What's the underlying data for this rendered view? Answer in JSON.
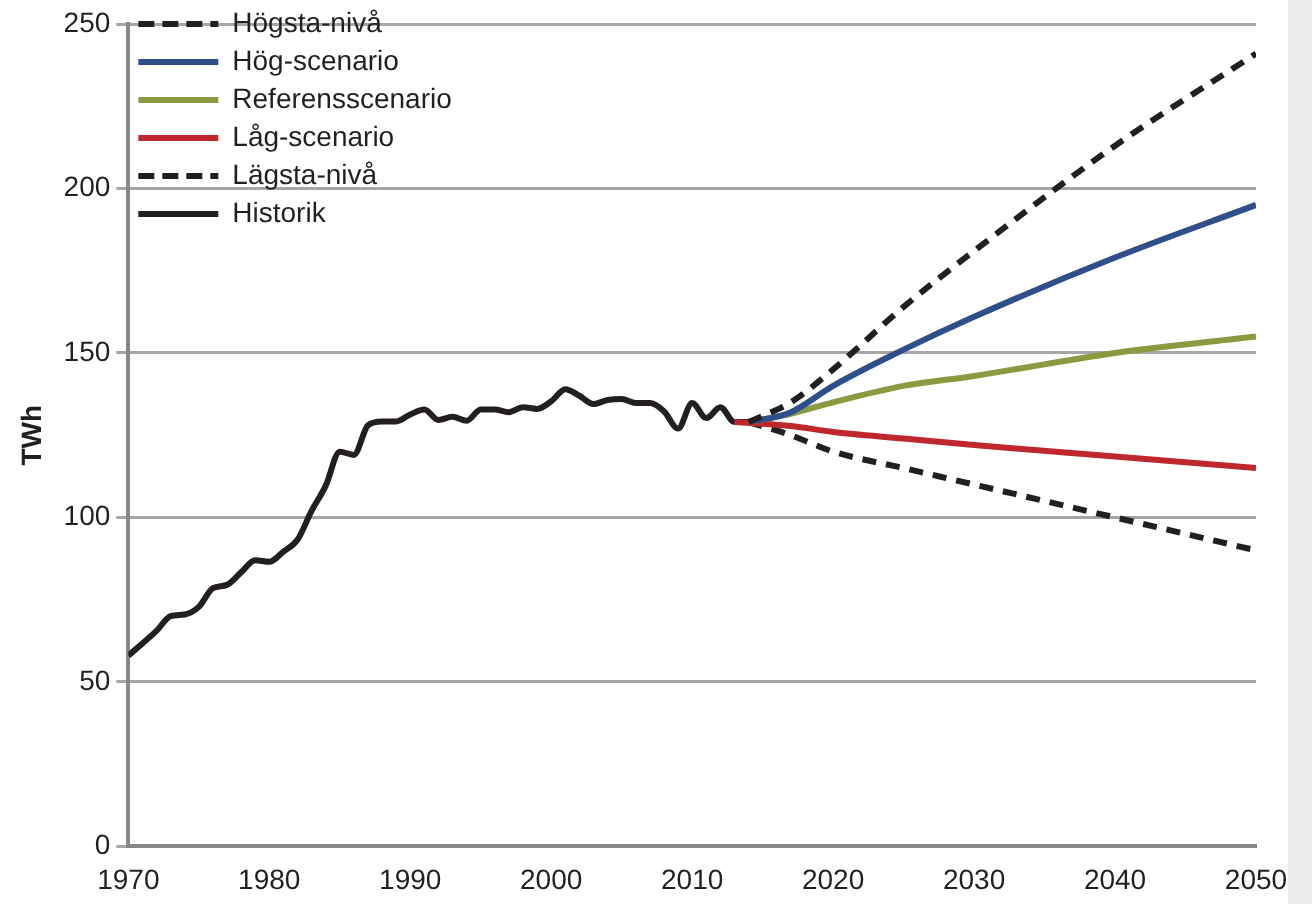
{
  "chart_data": {
    "type": "line",
    "ylabel": "TWh",
    "xlim": [
      1970,
      2050
    ],
    "xticks": [
      1970,
      1980,
      1990,
      2000,
      2010,
      2020,
      2030,
      2040,
      2050
    ],
    "ylim": [
      0,
      250
    ],
    "yticks": [
      0,
      50,
      100,
      150,
      200,
      250
    ],
    "grid": "y",
    "legend": "top left",
    "marker": "none",
    "series": [
      {
        "name": "Högsta-nivå",
        "color": "#231f20",
        "line_style": "dashed",
        "x": [
          2014,
          2017,
          2020,
          2025,
          2030,
          2040,
          2050
        ],
        "values": [
          129,
          135,
          145,
          164,
          181,
          213,
          241
        ]
      },
      {
        "name": "Hög-scenario",
        "color": "#2e4f8a",
        "x": [
          2014,
          2017,
          2020,
          2025,
          2030,
          2040,
          2050
        ],
        "values": [
          129,
          132,
          140,
          151,
          161,
          179,
          195
        ]
      },
      {
        "name": "Referensscenario",
        "color": "#8a9a3e",
        "x": [
          2014,
          2017,
          2020,
          2025,
          2030,
          2040,
          2050
        ],
        "values": [
          129,
          131.5,
          135,
          140,
          143,
          150,
          155
        ]
      },
      {
        "name": "Låg-scenario",
        "color": "#c0272d",
        "x": [
          2013,
          2017,
          2020,
          2025,
          2030,
          2040,
          2050
        ],
        "values": [
          129,
          127.8,
          126,
          124,
          122,
          118.5,
          115
        ]
      },
      {
        "name": "Lägsta-nivå",
        "color": "#231f20",
        "line_style": "dashed",
        "x": [
          2014,
          2017,
          2020,
          2025,
          2030,
          2040,
          2050
        ],
        "values": [
          129,
          125,
          120,
          115,
          110,
          100,
          90
        ]
      },
      {
        "name": "Historik",
        "color": "#231f20",
        "x": [
          1970,
          1971,
          1972,
          1973,
          1974,
          1975,
          1976,
          1977,
          1978,
          1979,
          1980,
          1981,
          1982,
          1983,
          1984,
          1985,
          1986,
          1987,
          1988,
          1989,
          1990,
          1991,
          1992,
          1993,
          1994,
          1995,
          1996,
          1997,
          1998,
          1999,
          2000,
          2001,
          2002,
          2003,
          2004,
          2005,
          2006,
          2007,
          2008,
          2009,
          2010,
          2011,
          2012,
          2013,
          2014
        ],
        "values": [
          58,
          61.7,
          65.5,
          70,
          70.5,
          72.8,
          78.5,
          79.5,
          83.3,
          87,
          86.5,
          89.6,
          93.2,
          102,
          109.6,
          120,
          119,
          128,
          129.2,
          129.2,
          131.3,
          132.8,
          129.6,
          130.6,
          129.4,
          132.8,
          132.8,
          132,
          133.5,
          133,
          135.3,
          139,
          137,
          134.5,
          135.7,
          136,
          134.8,
          134.8,
          132.3,
          127,
          134.8,
          130.2,
          133.5,
          129,
          129
        ]
      }
    ]
  }
}
